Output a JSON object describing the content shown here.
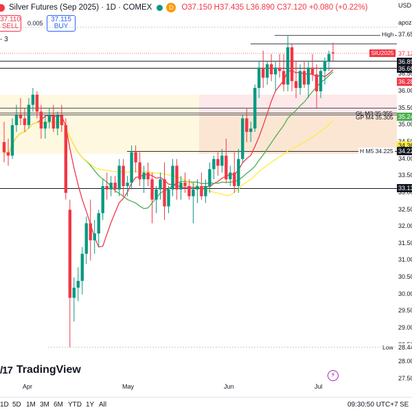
{
  "header": {
    "title": "Silver Futures (Sep 2025) · 1D · COMEX",
    "badge": "D",
    "ohlc_o": "O37.150",
    "ohlc_h": "H37.435",
    "ohlc_l": "L36.890",
    "ohlc_c": "C37.120",
    "change": "+0.080 (+0.22%)"
  },
  "trade": {
    "sell_price": "37.110",
    "sell_label": "SELL",
    "spread": "0.005",
    "buy_price": "37.115",
    "buy_label": "BUY"
  },
  "indicator_row": "- 3",
  "price_axis": {
    "currency": "USD",
    "apoz": "apoz",
    "ticks": [
      "37.00",
      "36.50",
      "36.00",
      "35.50",
      "35.00",
      "34.50",
      "34.00",
      "33.50",
      "33.00",
      "32.50",
      "32.00",
      "31.50",
      "31.00",
      "30.50",
      "30.00",
      "29.50",
      "29.00",
      "28.50",
      "28.00",
      "27.50"
    ],
    "badges": [
      {
        "text": "37.65",
        "bg": "#ffffff",
        "fg": "#131722"
      },
      {
        "text": "37.12",
        "bg": "#ffffff",
        "fg": "#f23645"
      },
      {
        "text": "36.89",
        "bg": "#131722",
        "fg": "#ffffff"
      },
      {
        "text": "36.68",
        "bg": "#131722",
        "fg": "#ffffff"
      },
      {
        "text": "36.28",
        "bg": "#f23645",
        "fg": "#ffffff"
      },
      {
        "text": "35.24",
        "bg": "#4caf50",
        "fg": "#ffffff"
      },
      {
        "text": "34.36",
        "bg": "#ffeb3b",
        "fg": "#131722"
      },
      {
        "text": "34.22",
        "bg": "#131722",
        "fg": "#ffffff"
      },
      {
        "text": "33.13",
        "bg": "#131722",
        "fg": "#ffffff"
      },
      {
        "text": "28.44",
        "bg": "#ffffff",
        "fg": "#131722"
      }
    ],
    "ticker": "SIU2025"
  },
  "annotations": {
    "high": "High",
    "low": "Low",
    "level1": "GL M3 35.355",
    "level2": "GP M4 35.305",
    "level3": "H M5 34.225"
  },
  "logo_text": "TradingView",
  "time_axis": [
    "Apr",
    "May",
    "Jun",
    "Jul"
  ],
  "bottom_bar": {
    "timeframes": [
      "1D",
      "5D",
      "1M",
      "3M",
      "6M",
      "YTD",
      "1Y",
      "All"
    ],
    "clock": "09:30:50 UTC+7",
    "sep": "SE"
  },
  "colors": {
    "up": "#089981",
    "down": "#f23645",
    "ma_fast": "#f23645",
    "ma_mid": "#4caf50",
    "ma_slow": "#ffeb3b"
  },
  "chart_data": {
    "type": "candlestick",
    "ylim": [
      27.3,
      37.8
    ],
    "candles": [
      [
        34.5,
        35.1,
        33.9,
        34.2
      ],
      [
        34.2,
        34.6,
        33.8,
        34.1
      ],
      [
        34.1,
        35.2,
        34.0,
        35.0
      ],
      [
        35.0,
        35.6,
        34.8,
        35.3
      ],
      [
        35.3,
        35.8,
        35.0,
        35.2
      ],
      [
        35.2,
        35.5,
        34.8,
        35.0
      ],
      [
        35.0,
        35.8,
        34.9,
        35.6
      ],
      [
        35.6,
        36.1,
        35.4,
        35.9
      ],
      [
        35.9,
        36.0,
        35.2,
        35.4
      ],
      [
        35.4,
        35.6,
        34.6,
        34.9
      ],
      [
        34.9,
        35.3,
        34.6,
        35.1
      ],
      [
        35.1,
        35.5,
        34.9,
        35.3
      ],
      [
        35.3,
        35.6,
        34.8,
        34.9
      ],
      [
        34.9,
        35.4,
        34.7,
        35.3
      ],
      [
        35.3,
        35.6,
        34.8,
        35.0
      ],
      [
        35.0,
        35.2,
        32.8,
        33.0
      ],
      [
        32.5,
        32.8,
        28.44,
        29.9
      ],
      [
        29.9,
        30.5,
        29.2,
        30.2
      ],
      [
        30.2,
        30.8,
        29.8,
        30.4
      ],
      [
        30.4,
        31.4,
        30.0,
        31.2
      ],
      [
        31.2,
        32.3,
        30.9,
        32.1
      ],
      [
        32.1,
        32.8,
        31.0,
        31.6
      ],
      [
        31.6,
        32.2,
        31.2,
        31.8
      ],
      [
        31.8,
        32.5,
        31.4,
        32.4
      ],
      [
        32.4,
        33.4,
        32.2,
        33.2
      ],
      [
        33.2,
        33.6,
        32.8,
        33.1
      ],
      [
        33.1,
        33.5,
        32.9,
        33.3
      ],
      [
        33.3,
        33.5,
        33.0,
        33.1
      ],
      [
        33.1,
        34.0,
        32.9,
        33.8
      ],
      [
        33.8,
        34.0,
        32.9,
        33.2
      ],
      [
        33.2,
        33.5,
        32.9,
        33.3
      ],
      [
        33.3,
        34.4,
        33.1,
        34.2
      ],
      [
        34.2,
        34.4,
        33.6,
        33.9
      ],
      [
        33.9,
        34.2,
        33.2,
        33.4
      ],
      [
        33.4,
        33.8,
        33.0,
        33.6
      ],
      [
        33.6,
        33.9,
        33.2,
        33.4
      ],
      [
        33.4,
        33.6,
        32.1,
        32.8
      ],
      [
        32.8,
        33.2,
        32.4,
        33.1
      ],
      [
        33.1,
        33.6,
        32.8,
        33.4
      ],
      [
        33.4,
        33.9,
        32.2,
        32.6
      ],
      [
        32.6,
        33.2,
        32.4,
        33.1
      ],
      [
        33.1,
        34.0,
        32.9,
        33.8
      ],
      [
        33.8,
        34.0,
        32.8,
        33.1
      ],
      [
        33.1,
        33.5,
        32.8,
        33.3
      ],
      [
        33.3,
        33.6,
        33.0,
        33.2
      ],
      [
        33.2,
        33.4,
        32.8,
        32.9
      ],
      [
        32.9,
        33.3,
        32.1,
        33.1
      ],
      [
        33.1,
        33.4,
        32.7,
        33.2
      ],
      [
        33.2,
        33.6,
        32.8,
        32.9
      ],
      [
        32.9,
        33.4,
        32.7,
        33.2
      ],
      [
        33.2,
        33.9,
        33.0,
        33.7
      ],
      [
        33.7,
        34.1,
        33.4,
        34.0
      ],
      [
        34.0,
        34.2,
        33.5,
        33.8
      ],
      [
        33.8,
        34.3,
        33.6,
        34.1
      ],
      [
        34.1,
        34.6,
        33.3,
        33.4
      ],
      [
        33.4,
        33.8,
        33.2,
        33.6
      ],
      [
        33.6,
        34.2,
        33.0,
        33.2
      ],
      [
        33.2,
        34.3,
        33.0,
        34.0
      ],
      [
        34.0,
        35.3,
        33.9,
        35.2
      ],
      [
        35.2,
        35.5,
        34.5,
        34.8
      ],
      [
        34.8,
        35.1,
        34.5,
        34.9
      ],
      [
        34.9,
        36.2,
        34.8,
        36.1
      ],
      [
        36.1,
        36.9,
        35.8,
        36.7
      ],
      [
        36.7,
        37.2,
        36.1,
        36.4
      ],
      [
        36.4,
        36.9,
        36.2,
        36.8
      ],
      [
        36.8,
        37.1,
        36.3,
        36.5
      ],
      [
        36.5,
        36.9,
        36.0,
        36.7
      ],
      [
        36.7,
        37.1,
        36.4,
        36.6
      ],
      [
        36.6,
        37.1,
        36.0,
        36.2
      ],
      [
        36.2,
        37.65,
        36.0,
        37.3
      ],
      [
        37.3,
        37.4,
        36.0,
        36.3
      ],
      [
        36.3,
        36.9,
        35.8,
        36.1
      ],
      [
        36.1,
        36.8,
        35.9,
        36.6
      ],
      [
        36.6,
        36.9,
        36.1,
        36.2
      ],
      [
        36.2,
        36.9,
        35.8,
        36.7
      ],
      [
        36.7,
        37.1,
        36.3,
        36.5
      ],
      [
        36.5,
        36.8,
        35.5,
        36.0
      ],
      [
        36.0,
        36.7,
        35.8,
        36.6
      ],
      [
        36.6,
        37.0,
        36.2,
        36.9
      ],
      [
        36.9,
        37.2,
        36.6,
        37.1
      ],
      [
        37.15,
        37.435,
        36.89,
        37.12
      ]
    ]
  }
}
